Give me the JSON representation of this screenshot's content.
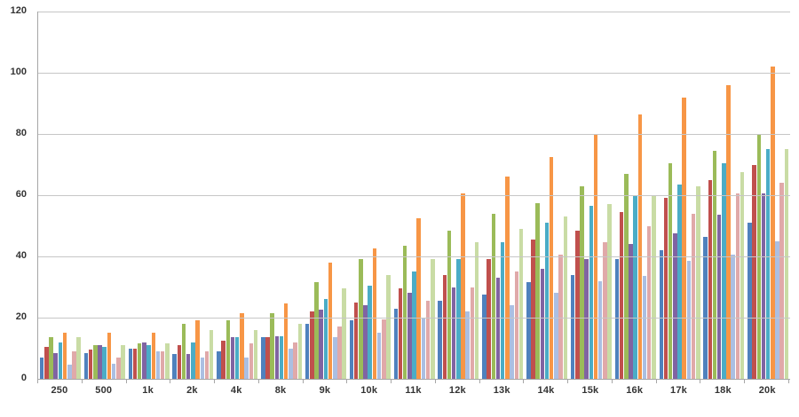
{
  "chart_data": {
    "type": "bar",
    "title": "",
    "xlabel": "",
    "ylabel": "",
    "ylim": [
      0,
      120
    ],
    "yticks": [
      0,
      20,
      40,
      60,
      80,
      100,
      120
    ],
    "grid": true,
    "legend": "none",
    "grid_color": "#c6c6c6",
    "axis_color": "#a6a6a6",
    "tick_label_color": "#333333",
    "categories": [
      "250",
      "500",
      "1k",
      "2k",
      "4k",
      "8k",
      "9k",
      "10k",
      "11k",
      "12k",
      "13k",
      "14k",
      "15k",
      "16k",
      "17k",
      "18k",
      "20k"
    ],
    "series": [
      {
        "name": "blue",
        "color": "#4F81BD",
        "values": [
          7,
          8.5,
          10,
          8,
          9,
          13.5,
          18,
          19,
          23,
          25.5,
          27.5,
          31.5,
          34,
          39,
          42,
          46.5,
          51
        ]
      },
      {
        "name": "red",
        "color": "#C0504D",
        "values": [
          10.5,
          9.5,
          10,
          11,
          12.5,
          13.5,
          22,
          25,
          29.5,
          34,
          39,
          45.5,
          48.5,
          54.5,
          59,
          65,
          70
        ]
      },
      {
        "name": "green",
        "color": "#9BBB59",
        "values": [
          13.5,
          11,
          11.5,
          18,
          19,
          21.5,
          31.5,
          39,
          43.5,
          48.5,
          54,
          57.5,
          63,
          67,
          70.5,
          74.5,
          80
        ]
      },
      {
        "name": "purple",
        "color": "#8064A2",
        "values": [
          8.5,
          11,
          12,
          8,
          13.5,
          14,
          22.5,
          24,
          28,
          30,
          33,
          36,
          39,
          44,
          47.5,
          53.5,
          60.5
        ]
      },
      {
        "name": "teal",
        "color": "#4BACC6",
        "values": [
          12,
          10.5,
          11,
          12,
          13.5,
          14,
          26,
          30.5,
          35,
          39,
          44.5,
          51,
          56.5,
          60,
          63.5,
          70.5,
          75
        ]
      },
      {
        "name": "orange",
        "color": "#F79646",
        "values": [
          15,
          15,
          15,
          19,
          21.5,
          24.5,
          38,
          42.5,
          52.5,
          60.5,
          66,
          72.5,
          80,
          86.5,
          92,
          96,
          102
        ]
      },
      {
        "name": "light-blue",
        "color": "#ABBFE2",
        "values": [
          4.5,
          5,
          9,
          7,
          7,
          10,
          13.5,
          15,
          20,
          22,
          24,
          28,
          32,
          33.5,
          38.5,
          40.5,
          45
        ]
      },
      {
        "name": "light-pink",
        "color": "#E0A9A9",
        "values": [
          9,
          7,
          9,
          9,
          11.5,
          12,
          17,
          19.5,
          25.5,
          30,
          35,
          40.5,
          44.5,
          50,
          54,
          60.5,
          64
        ]
      },
      {
        "name": "light-green",
        "color": "#C9DCA5",
        "values": [
          13.5,
          11,
          11.5,
          16,
          16,
          18,
          29.5,
          34,
          39,
          44.5,
          49,
          53,
          57,
          60,
          63,
          67.5,
          75
        ]
      }
    ]
  }
}
